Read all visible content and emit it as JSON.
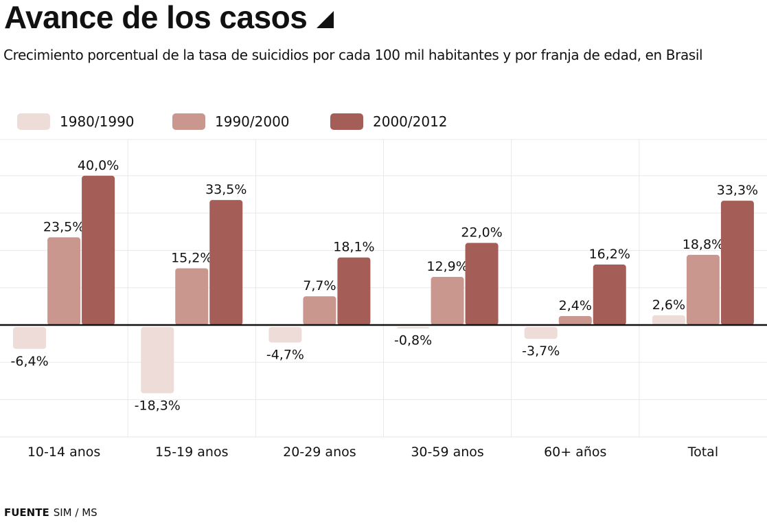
{
  "title": "Avance de los casos",
  "subtitle": "Crecimiento porcentual de la tasa de suicidios por cada 100 mil habitantes y por franja de edad, en Brasil",
  "source": {
    "label": "FUENTE",
    "text": "SIM / MS"
  },
  "legend": [
    {
      "label": "1980/1990",
      "color": "#eddcd8"
    },
    {
      "label": "1990/2000",
      "color": "#c9978e"
    },
    {
      "label": "2000/2012",
      "color": "#a45e57"
    }
  ],
  "chart_data": {
    "type": "bar",
    "categories": [
      "10-14 anos",
      "15-19 anos",
      "20-29 anos",
      "30-59 anos",
      "60+ años",
      "Total"
    ],
    "series": [
      {
        "name": "1980/1990",
        "color": "#eddcd8",
        "values": [
          -6.4,
          -18.3,
          -4.7,
          -0.8,
          -3.7,
          2.6
        ],
        "labels": [
          "-6,4%",
          "-18,3%",
          "-4,7%",
          "-0,8%",
          "-3,7%",
          "2,6%"
        ]
      },
      {
        "name": "1990/2000",
        "color": "#c9978e",
        "values": [
          23.5,
          15.2,
          7.7,
          12.9,
          2.4,
          18.8
        ],
        "labels": [
          "23,5%",
          "15,2%",
          "7,7%",
          "12,9%",
          "2,4%",
          "18,8%"
        ]
      },
      {
        "name": "2000/2012",
        "color": "#a45e57",
        "values": [
          40.0,
          33.5,
          18.1,
          22.0,
          16.2,
          33.3
        ],
        "labels": [
          "40,0%",
          "33,5%",
          "18,1%",
          "22,0%",
          "16,2%",
          "33,3%"
        ]
      }
    ],
    "ylim": [
      -30,
      50
    ],
    "grid": true,
    "legend_position": "top-left"
  }
}
